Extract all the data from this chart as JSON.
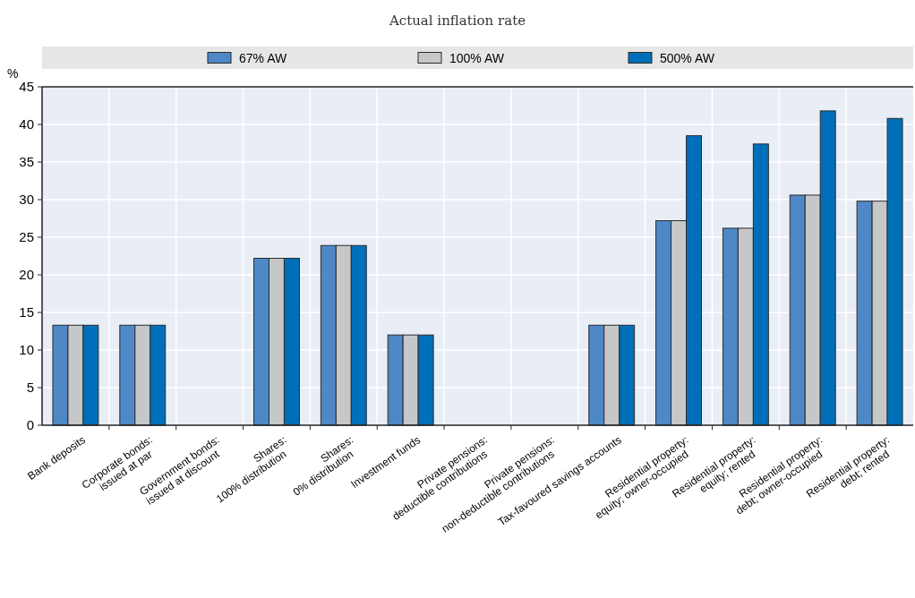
{
  "chart_data": {
    "type": "bar",
    "subtitle": "Actual inflation rate",
    "ylabel": "%",
    "categories": [
      "Bank deposits",
      "Corporate bonds:\nissued at par",
      "Government bonds:\nissued at discount",
      "Shares:\n100% distribution",
      "Shares:\n0% distribution",
      "Investment funds",
      "Private pensions:\ndeductible contributions",
      "Private pensions:\nnon-deductible contributions",
      "Tax-favoured savings accounts",
      "Residential property:\nequity; owner-occupied",
      "Residential property:\nequity; rented",
      "Residential property:\ndebt; owner-occupied",
      "Residential property:\ndebt; rented"
    ],
    "series": [
      {
        "name": "67% AW",
        "color": "#4e88c7",
        "values": [
          13.3,
          13.3,
          0,
          22.2,
          23.9,
          12,
          0,
          0,
          13.3,
          27.2,
          26.2,
          30.6,
          29.8
        ]
      },
      {
        "name": "100% AW",
        "color": "#c6c7c9",
        "values": [
          13.3,
          13.3,
          0,
          22.2,
          23.9,
          12,
          0,
          0,
          13.3,
          27.2,
          26.2,
          30.6,
          29.8
        ]
      },
      {
        "name": "500% AW",
        "color": "#006fba",
        "values": [
          13.3,
          13.3,
          0,
          22.2,
          23.9,
          12,
          0,
          0,
          13.3,
          38.5,
          37.4,
          41.8,
          40.8
        ]
      }
    ],
    "ylim": [
      0,
      45
    ],
    "yticks": [
      0,
      5,
      10,
      15,
      20,
      25,
      30,
      35,
      40,
      45
    ],
    "grid": true,
    "legend": "top"
  }
}
